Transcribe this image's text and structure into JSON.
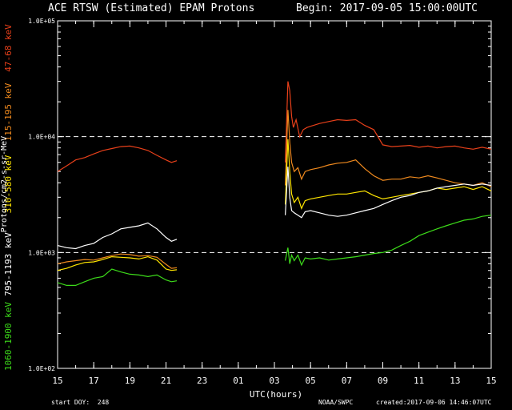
{
  "header": {
    "title": "ACE RTSW (Estimated) EPAM Protons",
    "begin": "Begin: 2017-09-05 15:00:00UTC"
  },
  "footer": {
    "start_doy": "start DOY:  248",
    "org": "NOAA/SWPC",
    "created": "created:2017-09-06 14:46:07UTC"
  },
  "chart_data": {
    "type": "line",
    "xlabel": "UTC(hours)",
    "ylabel": "Protons/cm2-s-sr-MeV",
    "log_y": true,
    "ylim": [
      100,
      100000
    ],
    "y_tick_labels": [
      "1.0E+02",
      "1.0E+03",
      "1.0E+04",
      "1.0E+05"
    ],
    "y_ticks": [
      100,
      1000,
      10000,
      100000
    ],
    "x_tick_labels": [
      "15",
      "17",
      "19",
      "21",
      "23",
      "01",
      "03",
      "05",
      "07",
      "09",
      "11",
      "13",
      "15"
    ],
    "xlim_hours": [
      0,
      24
    ],
    "reference_lines": [
      1000,
      10000
    ],
    "grid": false,
    "series": [
      {
        "name": "47-68 keV",
        "color": "#e8401a",
        "segments": [
          [
            [
              0.0,
              5000
            ],
            [
              0.5,
              5600
            ],
            [
              1.0,
              6300
            ],
            [
              1.5,
              6600
            ],
            [
              2.0,
              7100
            ],
            [
              2.5,
              7600
            ],
            [
              3.0,
              7900
            ],
            [
              3.5,
              8200
            ],
            [
              4.0,
              8300
            ],
            [
              4.5,
              8000
            ],
            [
              5.0,
              7600
            ],
            [
              5.5,
              6900
            ],
            [
              6.0,
              6300
            ],
            [
              6.3,
              6000
            ],
            [
              6.6,
              6200
            ]
          ],
          [
            [
              12.6,
              6000
            ],
            [
              12.75,
              30000
            ],
            [
              12.85,
              25000
            ],
            [
              12.95,
              15000
            ],
            [
              13.05,
              12000
            ],
            [
              13.2,
              14000
            ],
            [
              13.4,
              10000
            ],
            [
              13.6,
              11500
            ],
            [
              13.8,
              12000
            ],
            [
              14.0,
              12300
            ],
            [
              14.5,
              13000
            ],
            [
              15.0,
              13500
            ],
            [
              15.5,
              14000
            ],
            [
              16.0,
              13800
            ],
            [
              16.5,
              14000
            ],
            [
              17.0,
              12500
            ],
            [
              17.5,
              11500
            ],
            [
              18.0,
              8500
            ],
            [
              18.5,
              8200
            ],
            [
              19.0,
              8300
            ],
            [
              19.5,
              8400
            ],
            [
              20.0,
              8100
            ],
            [
              20.5,
              8300
            ],
            [
              21.0,
              8000
            ],
            [
              21.5,
              8200
            ],
            [
              22.0,
              8300
            ],
            [
              22.5,
              8000
            ],
            [
              23.0,
              7800
            ],
            [
              23.5,
              8100
            ],
            [
              24.0,
              7800
            ]
          ]
        ]
      },
      {
        "name": "115-195 keV",
        "color": "#f08a1e",
        "segments": [
          [
            [
              0.0,
              800
            ],
            [
              0.5,
              830
            ],
            [
              1.0,
              850
            ],
            [
              1.5,
              870
            ],
            [
              2.0,
              860
            ],
            [
              2.5,
              900
            ],
            [
              3.0,
              940
            ],
            [
              3.5,
              970
            ],
            [
              4.0,
              960
            ],
            [
              4.5,
              930
            ],
            [
              5.0,
              940
            ],
            [
              5.5,
              910
            ],
            [
              6.0,
              790
            ],
            [
              6.3,
              730
            ],
            [
              6.6,
              740
            ]
          ],
          [
            [
              12.6,
              3800
            ],
            [
              12.75,
              17000
            ],
            [
              12.85,
              9000
            ],
            [
              12.95,
              6000
            ],
            [
              13.1,
              5000
            ],
            [
              13.3,
              5400
            ],
            [
              13.5,
              4300
            ],
            [
              13.7,
              5000
            ],
            [
              14.0,
              5200
            ],
            [
              14.5,
              5400
            ],
            [
              15.0,
              5700
            ],
            [
              15.5,
              5900
            ],
            [
              16.0,
              6000
            ],
            [
              16.5,
              6300
            ],
            [
              17.0,
              5300
            ],
            [
              17.5,
              4600
            ],
            [
              18.0,
              4200
            ],
            [
              18.5,
              4300
            ],
            [
              19.0,
              4300
            ],
            [
              19.5,
              4500
            ],
            [
              20.0,
              4400
            ],
            [
              20.5,
              4600
            ],
            [
              21.0,
              4400
            ],
            [
              21.5,
              4200
            ],
            [
              22.0,
              4000
            ],
            [
              22.5,
              3900
            ],
            [
              23.0,
              3800
            ],
            [
              23.5,
              4000
            ],
            [
              24.0,
              3700
            ]
          ]
        ]
      },
      {
        "name": "310-580 keV",
        "color": "#ffe600",
        "segments": [
          [
            [
              0.0,
              700
            ],
            [
              0.5,
              730
            ],
            [
              1.0,
              780
            ],
            [
              1.5,
              820
            ],
            [
              2.0,
              830
            ],
            [
              2.5,
              870
            ],
            [
              3.0,
              920
            ],
            [
              3.5,
              910
            ],
            [
              4.0,
              900
            ],
            [
              4.5,
              880
            ],
            [
              5.0,
              920
            ],
            [
              5.5,
              860
            ],
            [
              6.0,
              720
            ],
            [
              6.3,
              700
            ],
            [
              6.6,
              710
            ]
          ],
          [
            [
              12.6,
              2600
            ],
            [
              12.75,
              9500
            ],
            [
              12.85,
              5000
            ],
            [
              12.95,
              3200
            ],
            [
              13.1,
              2700
            ],
            [
              13.3,
              3000
            ],
            [
              13.5,
              2400
            ],
            [
              13.7,
              2800
            ],
            [
              14.0,
              2900
            ],
            [
              14.5,
              3000
            ],
            [
              15.0,
              3100
            ],
            [
              15.5,
              3200
            ],
            [
              16.0,
              3200
            ],
            [
              16.5,
              3300
            ],
            [
              17.0,
              3400
            ],
            [
              17.5,
              3100
            ],
            [
              18.0,
              2900
            ],
            [
              18.5,
              3000
            ],
            [
              19.0,
              3100
            ],
            [
              19.5,
              3200
            ],
            [
              20.0,
              3300
            ],
            [
              20.5,
              3400
            ],
            [
              21.0,
              3600
            ],
            [
              21.5,
              3500
            ],
            [
              22.0,
              3600
            ],
            [
              22.5,
              3700
            ],
            [
              23.0,
              3500
            ],
            [
              23.5,
              3700
            ],
            [
              24.0,
              3400
            ]
          ]
        ]
      },
      {
        "name": "795-1193 keV",
        "color": "#ffffff",
        "segments": [
          [
            [
              0.0,
              1150
            ],
            [
              0.5,
              1100
            ],
            [
              1.0,
              1080
            ],
            [
              1.5,
              1150
            ],
            [
              2.0,
              1200
            ],
            [
              2.5,
              1350
            ],
            [
              3.0,
              1450
            ],
            [
              3.5,
              1600
            ],
            [
              4.0,
              1650
            ],
            [
              4.5,
              1700
            ],
            [
              5.0,
              1800
            ],
            [
              5.5,
              1600
            ],
            [
              6.0,
              1350
            ],
            [
              6.3,
              1250
            ],
            [
              6.6,
              1300
            ]
          ],
          [
            [
              12.6,
              2100
            ],
            [
              12.75,
              5500
            ],
            [
              12.85,
              3000
            ],
            [
              12.95,
              2300
            ],
            [
              13.1,
              2200
            ],
            [
              13.3,
              2100
            ],
            [
              13.5,
              2000
            ],
            [
              13.7,
              2250
            ],
            [
              14.0,
              2300
            ],
            [
              14.5,
              2200
            ],
            [
              15.0,
              2100
            ],
            [
              15.5,
              2050
            ],
            [
              16.0,
              2100
            ],
            [
              16.5,
              2200
            ],
            [
              17.0,
              2300
            ],
            [
              17.5,
              2400
            ],
            [
              18.0,
              2600
            ],
            [
              18.5,
              2800
            ],
            [
              19.0,
              3000
            ],
            [
              19.5,
              3100
            ],
            [
              20.0,
              3300
            ],
            [
              20.5,
              3400
            ],
            [
              21.0,
              3600
            ],
            [
              21.5,
              3700
            ],
            [
              22.0,
              3800
            ],
            [
              22.5,
              3900
            ],
            [
              23.0,
              3800
            ],
            [
              23.5,
              3900
            ],
            [
              24.0,
              3800
            ]
          ]
        ]
      },
      {
        "name": "1060-1900 keV",
        "color": "#3ddc1a",
        "segments": [
          [
            [
              0.0,
              550
            ],
            [
              0.5,
              520
            ],
            [
              1.0,
              520
            ],
            [
              1.5,
              560
            ],
            [
              2.0,
              600
            ],
            [
              2.5,
              620
            ],
            [
              3.0,
              720
            ],
            [
              3.5,
              680
            ],
            [
              4.0,
              650
            ],
            [
              4.5,
              640
            ],
            [
              5.0,
              620
            ],
            [
              5.5,
              640
            ],
            [
              6.0,
              580
            ],
            [
              6.3,
              560
            ],
            [
              6.6,
              570
            ]
          ],
          [
            [
              12.6,
              850
            ],
            [
              12.75,
              1100
            ],
            [
              12.85,
              800
            ],
            [
              12.95,
              950
            ],
            [
              13.1,
              850
            ],
            [
              13.3,
              950
            ],
            [
              13.5,
              780
            ],
            [
              13.7,
              900
            ],
            [
              14.0,
              880
            ],
            [
              14.5,
              900
            ],
            [
              15.0,
              860
            ],
            [
              15.5,
              880
            ],
            [
              16.0,
              900
            ],
            [
              16.5,
              920
            ],
            [
              17.0,
              950
            ],
            [
              17.5,
              980
            ],
            [
              18.0,
              1000
            ],
            [
              18.5,
              1050
            ],
            [
              19.0,
              1150
            ],
            [
              19.5,
              1250
            ],
            [
              20.0,
              1400
            ],
            [
              20.5,
              1500
            ],
            [
              21.0,
              1600
            ],
            [
              21.5,
              1700
            ],
            [
              22.0,
              1800
            ],
            [
              22.5,
              1900
            ],
            [
              23.0,
              1950
            ],
            [
              23.5,
              2050
            ],
            [
              24.0,
              2100
            ]
          ]
        ]
      }
    ]
  }
}
